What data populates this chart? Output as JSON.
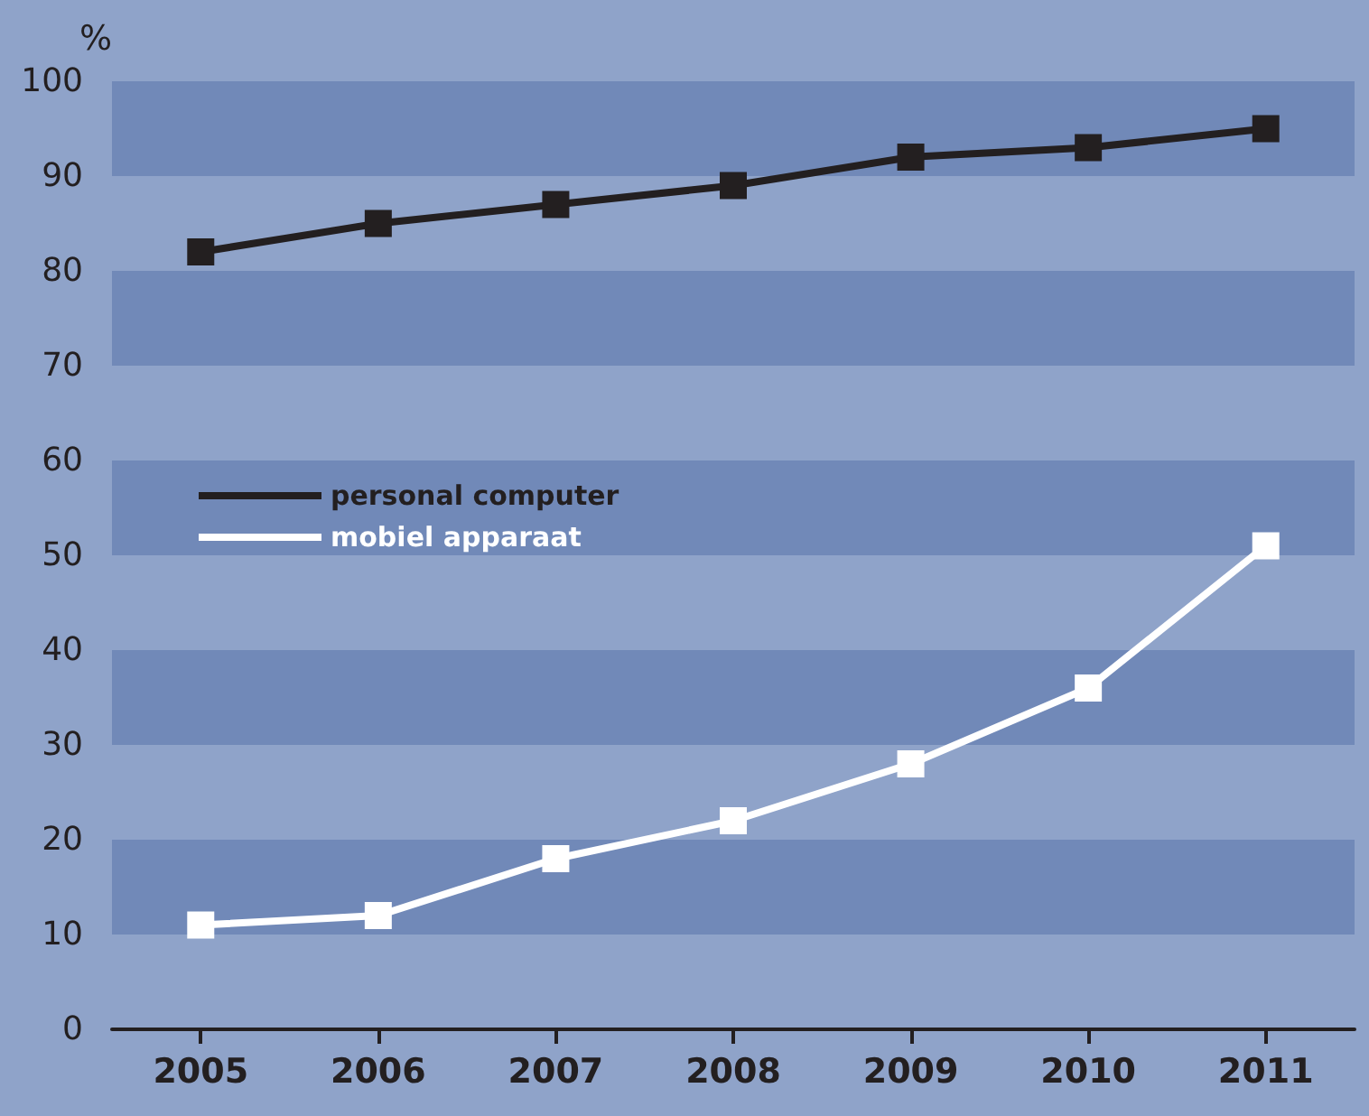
{
  "chart_data": {
    "type": "line",
    "ylabel": "%",
    "categories": [
      "2005",
      "2006",
      "2007",
      "2008",
      "2009",
      "2010",
      "2011"
    ],
    "series": [
      {
        "name": "personal computer",
        "color": "#231f20",
        "values": [
          82,
          85,
          87,
          89,
          92,
          93,
          95
        ]
      },
      {
        "name": "mobiel apparaat",
        "color": "#ffffff",
        "values": [
          11,
          12,
          18,
          22,
          28,
          36,
          51
        ]
      }
    ],
    "ylim": [
      0,
      100
    ],
    "yticks": [
      0,
      10,
      20,
      30,
      40,
      50,
      60,
      70,
      80,
      90,
      100
    ],
    "bands": [
      {
        "axis": "y",
        "from": 10,
        "to": 20,
        "color": "#7189b8"
      },
      {
        "axis": "y",
        "from": 30,
        "to": 40,
        "color": "#7189b8"
      },
      {
        "axis": "y",
        "from": 50,
        "to": 60,
        "color": "#7189b8"
      },
      {
        "axis": "y",
        "from": 70,
        "to": 80,
        "color": "#7189b8"
      },
      {
        "axis": "y",
        "from": 90,
        "to": 100,
        "color": "#7189b8"
      }
    ],
    "legend": "left",
    "marker": "square",
    "line_style": "solid"
  }
}
